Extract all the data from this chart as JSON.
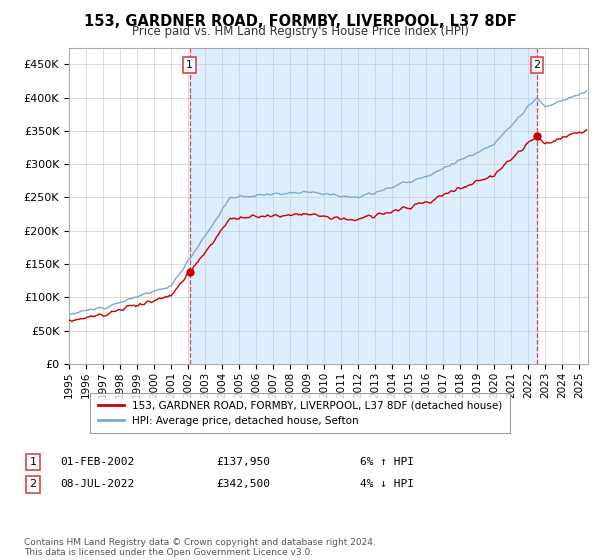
{
  "title": "153, GARDNER ROAD, FORMBY, LIVERPOOL, L37 8DF",
  "subtitle": "Price paid vs. HM Land Registry's House Price Index (HPI)",
  "legend_line1": "153, GARDNER ROAD, FORMBY, LIVERPOOL, L37 8DF (detached house)",
  "legend_line2": "HPI: Average price, detached house, Sefton",
  "annotation1_date": "01-FEB-2002",
  "annotation1_price": "£137,950",
  "annotation1_hpi": "6% ↑ HPI",
  "annotation2_date": "08-JUL-2022",
  "annotation2_price": "£342,500",
  "annotation2_hpi": "4% ↓ HPI",
  "footer": "Contains HM Land Registry data © Crown copyright and database right 2024.\nThis data is licensed under the Open Government Licence v3.0.",
  "red_color": "#cc0000",
  "blue_color": "#7eaacc",
  "fill_color": "#ddeeff",
  "dashed_color": "#dd4444",
  "ylim": [
    0,
    475000
  ],
  "yticks": [
    0,
    50000,
    100000,
    150000,
    200000,
    250000,
    300000,
    350000,
    400000,
    450000
  ],
  "sale1_year": 2002.083,
  "sale1_price": 137950,
  "sale2_year": 2022.5,
  "sale2_price": 342500
}
